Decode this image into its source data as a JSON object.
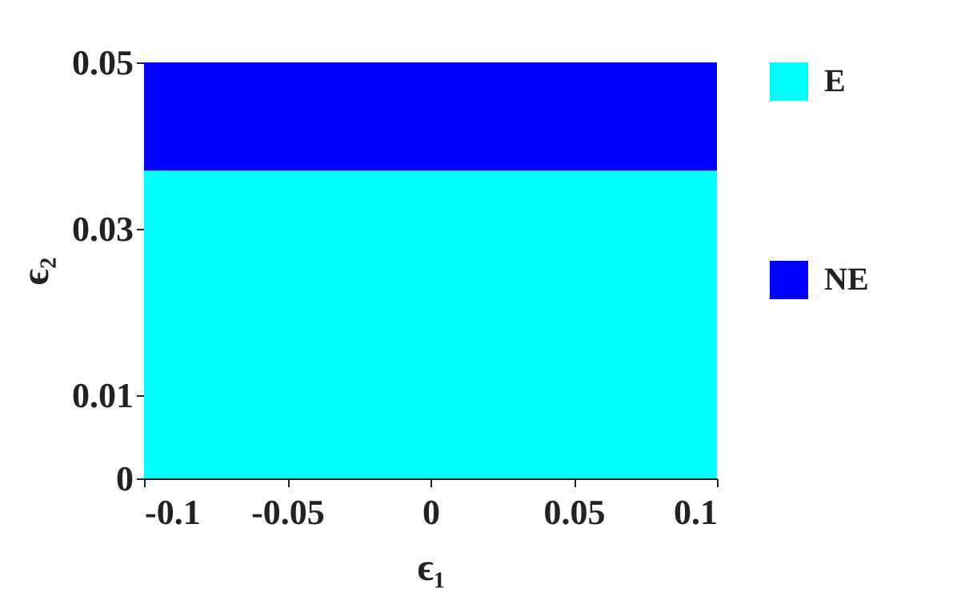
{
  "chart_data": {
    "type": "area",
    "stacked": true,
    "xlabel": "ϵ₁",
    "ylabel": "ϵ₂",
    "x": [
      -0.1,
      0.1
    ],
    "series": [
      {
        "name": "E",
        "color": "#00ffff",
        "values": [
          0.037,
          0.037
        ]
      },
      {
        "name": "NE",
        "color": "#0000ff",
        "values": [
          0.013,
          0.013
        ]
      }
    ],
    "xlim": [
      -0.1,
      0.1
    ],
    "xticks": [
      -0.1,
      -0.05,
      0,
      0.05,
      0.1
    ],
    "ylim": [
      0,
      0.05
    ],
    "yticks": [
      0,
      0.01,
      0.03,
      0.05
    ],
    "grid": false,
    "legend": "right"
  }
}
